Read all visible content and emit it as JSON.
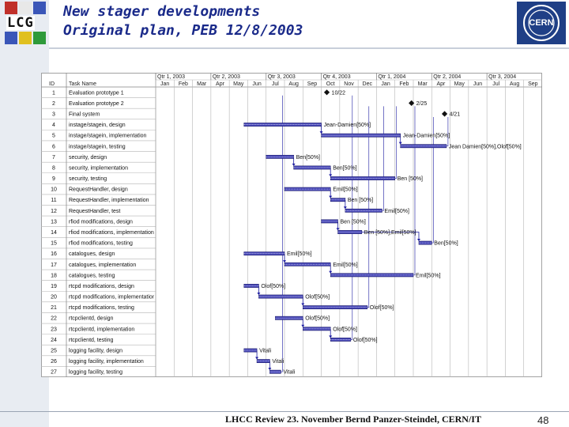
{
  "header": {
    "title_line1": "New stager developments",
    "title_line2": "Original plan, PEB 12/8/2003",
    "left_logo_text": "LCG",
    "right_logo_text": "CERN"
  },
  "gantt": {
    "id_header": "ID",
    "name_header": "Task Name",
    "quarters": [
      "Qtr 1, 2003",
      "Qtr 2, 2003",
      "Qtr 3, 2003",
      "Qtr 4, 2003",
      "Qtr 1, 2004",
      "Qtr 2, 2004",
      "Qtr 3, 2004"
    ],
    "months": [
      "Jan",
      "Feb",
      "Mar",
      "Apr",
      "May",
      "Jun",
      "Jul",
      "Aug",
      "Sep",
      "Oct",
      "Nov",
      "Dec",
      "Jan",
      "Feb",
      "Mar",
      "Apr",
      "May",
      "Jun",
      "Jul",
      "Aug",
      "Sep"
    ],
    "tasks": [
      {
        "id": "1",
        "name": "Evaluation prototype 1",
        "milestone": 9.3,
        "label": "10/22"
      },
      {
        "id": "2",
        "name": "Evaluation prototype 2",
        "milestone": 13.9,
        "label": "2/25"
      },
      {
        "id": "3",
        "name": "Final system",
        "milestone": 15.7,
        "label": "4/21"
      },
      {
        "id": "4",
        "name": "instage/stagein, design",
        "start": 4.8,
        "end": 9.0,
        "resource": "Jean-Damien[50%]"
      },
      {
        "id": "5",
        "name": "instage/stagein, implementation",
        "start": 9.0,
        "end": 13.3,
        "resource": "Jean-Damien[50%]"
      },
      {
        "id": "6",
        "name": "instage/stagein, testing",
        "start": 13.3,
        "end": 15.8,
        "resource": "Jean Damien[50%],Olof[50%]"
      },
      {
        "id": "7",
        "name": "security, design",
        "start": 6.0,
        "end": 7.5,
        "resource": "Ben[50%]"
      },
      {
        "id": "8",
        "name": "security, implementation",
        "start": 7.5,
        "end": 9.5,
        "resource": "Ben[50%]"
      },
      {
        "id": "9",
        "name": "security, testing",
        "start": 9.5,
        "end": 13.0,
        "resource": "Ben [50%]"
      },
      {
        "id": "10",
        "name": "RequestHandler, design",
        "start": 7.0,
        "end": 9.5,
        "resource": "Emil[50%]"
      },
      {
        "id": "11",
        "name": "RequestHandler, implementation",
        "start": 9.5,
        "end": 10.3,
        "resource": "Ben [50%]"
      },
      {
        "id": "12",
        "name": "RequestHandler, test",
        "start": 10.3,
        "end": 12.3,
        "resource": "Emil[50%]"
      },
      {
        "id": "13",
        "name": "rfiod modifications, design",
        "start": 9.0,
        "end": 9.9,
        "resource": "Ben [50%]"
      },
      {
        "id": "14",
        "name": "rfiod modifications, implementation",
        "start": 9.9,
        "end": 11.2,
        "resource": "Ben [50%],Emil[50%]"
      },
      {
        "id": "15",
        "name": "rfiod modifications, testing",
        "start": 14.3,
        "end": 15.0,
        "resource": "Ben[50%]"
      },
      {
        "id": "16",
        "name": "catalogues, design",
        "start": 4.8,
        "end": 7.0,
        "resource": "Emil[50%]"
      },
      {
        "id": "17",
        "name": "catalogues, implementation",
        "start": 7.0,
        "end": 9.5,
        "resource": "Emil[50%]"
      },
      {
        "id": "18",
        "name": "catalogues, testing",
        "start": 9.5,
        "end": 14.0,
        "resource": "Emil[50%]"
      },
      {
        "id": "19",
        "name": "rtcpd modifications, design",
        "start": 4.8,
        "end": 5.6,
        "resource": "Olof[50%]"
      },
      {
        "id": "20",
        "name": "rtcpd modifications, implementation",
        "start": 5.6,
        "end": 8.0,
        "resource": "Olof[50%]"
      },
      {
        "id": "21",
        "name": "rtcpd modifications, testing",
        "start": 8.0,
        "end": 11.5,
        "resource": "Olof[50%]"
      },
      {
        "id": "22",
        "name": "rtcpclientd, design",
        "start": 6.5,
        "end": 8.0,
        "resource": "Olof[50%]"
      },
      {
        "id": "23",
        "name": "rtcpclientd, implementation",
        "start": 8.0,
        "end": 9.5,
        "resource": "Olof[50%]"
      },
      {
        "id": "24",
        "name": "rtcpclientd, testing",
        "start": 9.5,
        "end": 10.6,
        "resource": "Olof[50%]"
      },
      {
        "id": "25",
        "name": "logging facility, design",
        "start": 4.8,
        "end": 5.5,
        "resource": "Vitali"
      },
      {
        "id": "26",
        "name": "logging facility, implementation",
        "start": 5.5,
        "end": 6.2,
        "resource": "Vitali"
      },
      {
        "id": "27",
        "name": "logging facility, testing",
        "start": 6.2,
        "end": 6.8,
        "resource": "Vitali"
      }
    ]
  },
  "footer": {
    "text": "LHCC Review 23. November   Bernd Panzer-Steindel,  CERN/IT",
    "page_number": "48"
  },
  "colors": {
    "title": "#1a2a8a",
    "bar_fill": "#4a4ab8",
    "link_line": "#1a1aa0",
    "cern_blue": "#1f3f86"
  }
}
